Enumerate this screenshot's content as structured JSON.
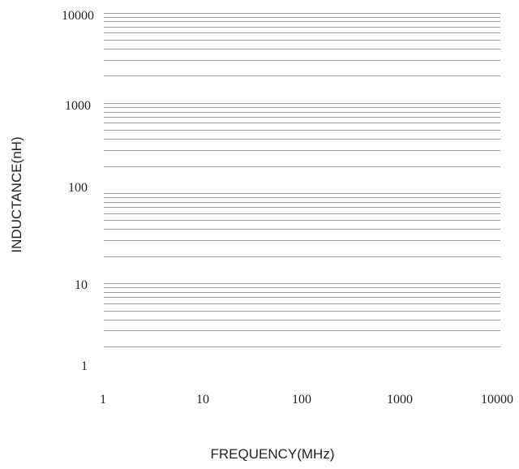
{
  "chart_data": {
    "type": "line",
    "title": "",
    "xlabel": "FREQUENCY(MHz)",
    "ylabel": "INDUCTANCE(nH)",
    "xscale": "log",
    "yscale": "log",
    "xlim": [
      1,
      10000
    ],
    "ylim": [
      1,
      10000
    ],
    "x_tick_labels": [
      "1",
      "10",
      "100",
      "1000",
      "10000"
    ],
    "y_tick_labels": [
      "10000",
      "1000",
      "100",
      "10",
      "1"
    ],
    "grid": "horizontal",
    "series": []
  },
  "colors": {
    "grid": "#9a9a9a",
    "text": "#222222",
    "background": "#ffffff"
  }
}
